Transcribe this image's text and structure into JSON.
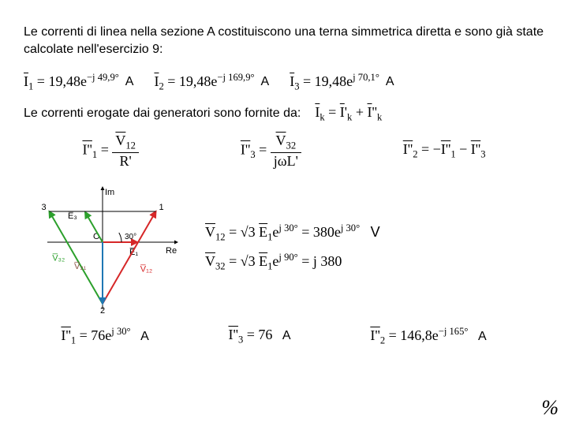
{
  "intro": "Le correnti di linea nella sezione A costituiscono una terna simmetrica diretta e sono già state calcolate nell'esercizio 9:",
  "row1": {
    "i1": {
      "lhs": "I",
      "sub": "1",
      "val": "= 19,48",
      "exp": "e",
      "sup": "−j 49,9°",
      "unit": "A"
    },
    "i2": {
      "lhs": "I",
      "sub": "2",
      "val": "= 19,48",
      "exp": "e",
      "sup": "−j 169,9°",
      "unit": "A"
    },
    "i3": {
      "lhs": "I",
      "sub": "3",
      "val": "= 19,48",
      "exp": "e",
      "sup": "j 70,1°",
      "unit": "A"
    }
  },
  "line2": {
    "text": "Le correnti erogate dai generatori sono fornite da:",
    "eq_lhs": "I",
    "eq_sub_l": "k",
    "eq_r1": "I",
    "eq_sub_r1": "k",
    "prime1": "'",
    "eq_plus": " + ",
    "eq_r2": "I",
    "eq_sub_r2": "k",
    "prime2": "''"
  },
  "row3": {
    "a": {
      "lhs": "I''",
      "sub": "1",
      "eq": " = ",
      "num_l": "V",
      "num_sub": "12",
      "den": "R'"
    },
    "b": {
      "lhs": "I''",
      "sub": "3",
      "eq": " = ",
      "num_l": "V",
      "num_sub": "32",
      "den": "jωL'"
    },
    "c": {
      "lhs": "I''",
      "sub": "2",
      "rhs": " = −",
      "r1": "I''",
      "r1sub": "1",
      "mid": " − ",
      "r2": "I''",
      "r2sub": "3"
    }
  },
  "phasor": {
    "colors": {
      "e1": "#d62728",
      "e3": "#2ca02c",
      "v12": "#d62728",
      "v32": "#2ca02c",
      "v21": "#8c564b",
      "pt2": "#1f77b4",
      "axes": "#000000"
    },
    "labels": {
      "im": "Im",
      "re": "Re",
      "o": "O",
      "n1": "1",
      "n2": "2",
      "n3": "3",
      "e1": "E̅₁",
      "e3": "E̅₃",
      "v12": "V̅₁₂",
      "v32": "V̅₃₂",
      "v21": "V̅₂₁",
      "ang": "30°"
    }
  },
  "vcol": {
    "v12": {
      "lhs": "V",
      "sub": "12",
      "pre": " = √3 ",
      "e": "E",
      "esub": "1",
      "exp": "e",
      "sup": "j 30°",
      "mid": " = 380",
      "exp2": "e",
      "sup2": "j 30°",
      "unit": "V"
    },
    "v32": {
      "lhs": "V",
      "sub": "32",
      "pre": " = √3 ",
      "e": "E",
      "esub": "1",
      "exp": "e",
      "sup": "j 90°",
      "mid": " = j 380"
    }
  },
  "row4": {
    "a": {
      "lhs": "I''",
      "sub": "1",
      "val": " = 76",
      "exp": "e",
      "sup": "j 30°",
      "unit": "A"
    },
    "b": {
      "lhs": "I''",
      "sub": "3",
      "val": " = 76",
      "unit": "A"
    },
    "c": {
      "lhs": "I''",
      "sub": "2",
      "val": " = 146,8",
      "exp": "e",
      "sup": "−j 165°",
      "unit": "A"
    }
  },
  "pct": "%"
}
